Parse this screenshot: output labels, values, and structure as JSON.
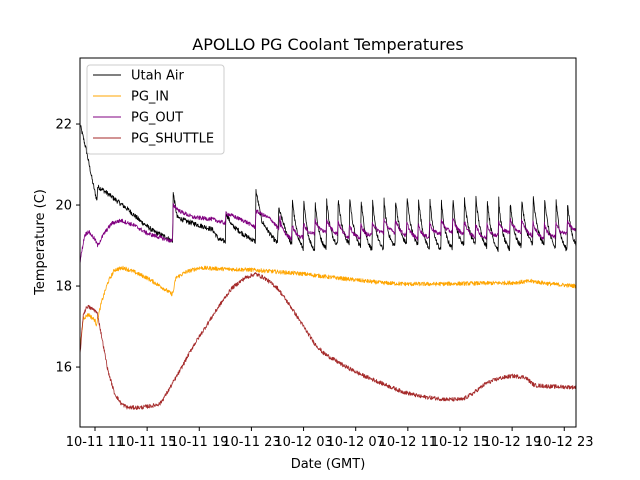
{
  "chart_data": {
    "type": "line",
    "title": "APOLLO PG Coolant Temperatures",
    "xlabel": "Date (GMT)",
    "ylabel": "Temperature (C)",
    "x_unit": "hours since 10-11 00:00 GMT",
    "xlim": [
      9.85,
      47.9
    ],
    "ylim": [
      14.52,
      23.63
    ],
    "x_ticks": [
      {
        "value": 11,
        "label": "10-11 11"
      },
      {
        "value": 15,
        "label": "10-11 15"
      },
      {
        "value": 19,
        "label": "10-11 19"
      },
      {
        "value": 23,
        "label": "10-11 23"
      },
      {
        "value": 27,
        "label": "10-12 03"
      },
      {
        "value": 31,
        "label": "10-12 07"
      },
      {
        "value": 35,
        "label": "10-12 11"
      },
      {
        "value": 39,
        "label": "10-12 15"
      },
      {
        "value": 43,
        "label": "10-12 19"
      },
      {
        "value": 47,
        "label": "10-12 23"
      }
    ],
    "y_ticks": [
      {
        "value": 16,
        "label": "16"
      },
      {
        "value": 18,
        "label": "18"
      },
      {
        "value": 20,
        "label": "20"
      },
      {
        "value": 22,
        "label": "22"
      }
    ],
    "grid": false,
    "legend": {
      "position": "top-left"
    },
    "series": [
      {
        "name": "Utah Air",
        "color": "#000000",
        "noise": 0.06,
        "points": [
          [
            9.85,
            22.0
          ],
          [
            10.3,
            21.4
          ],
          [
            10.8,
            20.6
          ],
          [
            11.15,
            20.1
          ],
          [
            11.2,
            20.45
          ],
          [
            11.5,
            20.4
          ],
          [
            12.5,
            20.15
          ],
          [
            13.5,
            19.9
          ],
          [
            14.5,
            19.6
          ],
          [
            15.5,
            19.35
          ],
          [
            16.5,
            19.2
          ],
          [
            16.95,
            19.1
          ],
          [
            17.0,
            20.3
          ],
          [
            17.3,
            19.7
          ],
          [
            18.0,
            19.6
          ],
          [
            19.0,
            19.5
          ],
          [
            20.0,
            19.4
          ],
          [
            20.5,
            19.15
          ],
          [
            21.0,
            19.1
          ],
          [
            21.05,
            19.8
          ],
          [
            21.5,
            19.5
          ],
          [
            22.5,
            19.25
          ],
          [
            23.3,
            19.1
          ],
          [
            23.35,
            20.35
          ],
          [
            23.8,
            19.6
          ],
          [
            24.5,
            19.25
          ],
          [
            25.0,
            19.05
          ],
          [
            25.1,
            19.9
          ],
          [
            25.6,
            19.4
          ],
          [
            26.1,
            19.0
          ]
        ],
        "sawtooth": {
          "start": 26.1,
          "end": 47.9,
          "period": 0.88,
          "high": 20.15,
          "low": 18.95
        }
      },
      {
        "name": "PG_IN",
        "color": "#ffa500",
        "noise": 0.05,
        "points": [
          [
            9.85,
            16.4
          ],
          [
            10.1,
            17.2
          ],
          [
            10.5,
            17.3
          ],
          [
            11.0,
            17.15
          ],
          [
            11.1,
            17.05
          ],
          [
            11.5,
            17.6
          ],
          [
            12.0,
            18.1
          ],
          [
            12.5,
            18.4
          ],
          [
            13.2,
            18.45
          ],
          [
            14.0,
            18.35
          ],
          [
            15.0,
            18.2
          ],
          [
            16.0,
            18.0
          ],
          [
            16.9,
            17.8
          ],
          [
            17.0,
            17.85
          ],
          [
            17.2,
            18.2
          ],
          [
            18.0,
            18.35
          ],
          [
            19.0,
            18.45
          ],
          [
            21.0,
            18.42
          ],
          [
            23.0,
            18.4
          ],
          [
            25.0,
            18.35
          ],
          [
            27.0,
            18.3
          ],
          [
            29.0,
            18.22
          ],
          [
            31.0,
            18.15
          ],
          [
            33.0,
            18.08
          ],
          [
            35.0,
            18.05
          ],
          [
            37.0,
            18.05
          ],
          [
            39.0,
            18.06
          ],
          [
            41.0,
            18.07
          ],
          [
            43.0,
            18.08
          ],
          [
            44.5,
            18.12
          ],
          [
            46.0,
            18.05
          ],
          [
            47.9,
            18.0
          ]
        ]
      },
      {
        "name": "PG_OUT",
        "color": "#800080",
        "noise": 0.05,
        "points": [
          [
            9.85,
            18.6
          ],
          [
            10.2,
            19.25
          ],
          [
            10.5,
            19.35
          ],
          [
            11.0,
            19.15
          ],
          [
            11.2,
            19.0
          ],
          [
            11.7,
            19.3
          ],
          [
            12.3,
            19.55
          ],
          [
            13.0,
            19.62
          ],
          [
            14.0,
            19.5
          ],
          [
            15.0,
            19.3
          ],
          [
            16.0,
            19.2
          ],
          [
            16.95,
            19.1
          ],
          [
            17.0,
            20.0
          ],
          [
            17.5,
            19.85
          ],
          [
            18.5,
            19.7
          ],
          [
            20.0,
            19.65
          ],
          [
            21.0,
            19.55
          ],
          [
            21.05,
            19.8
          ],
          [
            22.5,
            19.6
          ],
          [
            23.3,
            19.45
          ],
          [
            23.35,
            19.85
          ],
          [
            24.5,
            19.65
          ],
          [
            25.1,
            19.4
          ],
          [
            25.2,
            19.75
          ]
        ],
        "sawtooth": {
          "start": 25.2,
          "end": 47.9,
          "period": 0.88,
          "high": 19.6,
          "low": 19.25
        }
      },
      {
        "name": "PG_SHUTTLE",
        "color": "#a52a2a",
        "noise": 0.05,
        "points": [
          [
            9.85,
            16.3
          ],
          [
            10.1,
            17.3
          ],
          [
            10.4,
            17.5
          ],
          [
            11.0,
            17.4
          ],
          [
            11.2,
            17.3
          ],
          [
            11.6,
            16.6
          ],
          [
            12.0,
            15.9
          ],
          [
            12.5,
            15.35
          ],
          [
            13.0,
            15.1
          ],
          [
            13.5,
            15.0
          ],
          [
            14.5,
            15.0
          ],
          [
            15.5,
            15.05
          ],
          [
            16.0,
            15.1
          ],
          [
            16.5,
            15.35
          ],
          [
            17.5,
            15.9
          ],
          [
            18.5,
            16.5
          ],
          [
            19.5,
            17.0
          ],
          [
            20.5,
            17.5
          ],
          [
            21.5,
            17.95
          ],
          [
            22.5,
            18.2
          ],
          [
            23.3,
            18.3
          ],
          [
            24.0,
            18.2
          ],
          [
            25.0,
            17.95
          ],
          [
            26.0,
            17.5
          ],
          [
            27.0,
            17.0
          ],
          [
            27.8,
            16.6
          ],
          [
            28.5,
            16.35
          ],
          [
            30.0,
            16.05
          ],
          [
            31.5,
            15.8
          ],
          [
            33.0,
            15.6
          ],
          [
            34.5,
            15.4
          ],
          [
            36.0,
            15.27
          ],
          [
            38.0,
            15.2
          ],
          [
            39.2,
            15.2
          ],
          [
            40.0,
            15.35
          ],
          [
            41.0,
            15.6
          ],
          [
            42.0,
            15.72
          ],
          [
            43.0,
            15.78
          ],
          [
            44.0,
            15.75
          ],
          [
            44.7,
            15.55
          ],
          [
            46.0,
            15.52
          ],
          [
            47.9,
            15.5
          ]
        ]
      }
    ]
  }
}
